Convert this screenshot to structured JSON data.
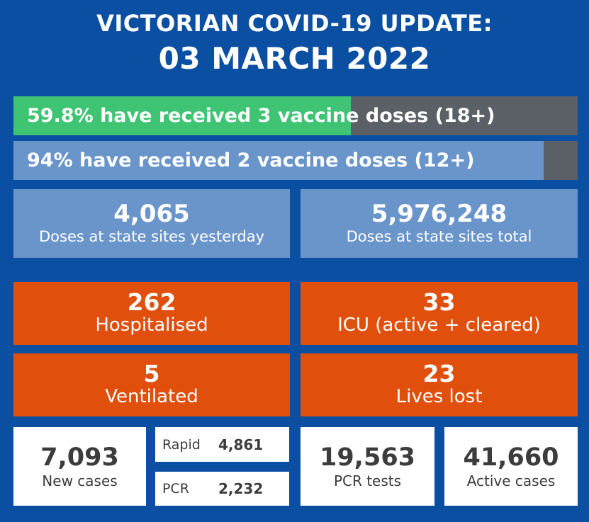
{
  "header": {
    "title_line1": "VICTORIAN COVID-19 UPDATE:",
    "title_line2": "03 MARCH 2022"
  },
  "colors": {
    "background": "#0b4fa3",
    "bar_track": "#5b6066",
    "three_doses_fill": "#3ec473",
    "two_doses_fill": "#6a95cb",
    "blue_tile": "#6a95cb",
    "orange_tile": "#e14f0d",
    "white_tile": "#ffffff"
  },
  "vaccination": {
    "three_doses": {
      "text": "59.8% have received 3 vaccine doses (18+)",
      "percent": 59.8
    },
    "two_doses": {
      "text": "94% have received 2 vaccine doses (12+)",
      "percent": 94
    }
  },
  "doses": {
    "yesterday": {
      "value": "4,065",
      "label": "Doses at state sites yesterday"
    },
    "total": {
      "value": "5,976,248",
      "label": "Doses at state sites total"
    }
  },
  "hospital": {
    "hospitalised": {
      "value": "262",
      "label": "Hospitalised"
    },
    "icu": {
      "value": "33",
      "label": "ICU (active + cleared)"
    },
    "ventilated": {
      "value": "5",
      "label": "Ventilated"
    },
    "lives_lost": {
      "value": "23",
      "label": "Lives lost"
    }
  },
  "cases": {
    "new_cases": {
      "value": "7,093",
      "label": "New cases"
    },
    "rapid": {
      "label": "Rapid",
      "value": "4,861"
    },
    "pcr": {
      "label": "PCR",
      "value": "2,232"
    },
    "pcr_tests": {
      "value": "19,563",
      "label": "PCR tests"
    },
    "active_cases": {
      "value": "41,660",
      "label": "Active cases"
    }
  }
}
